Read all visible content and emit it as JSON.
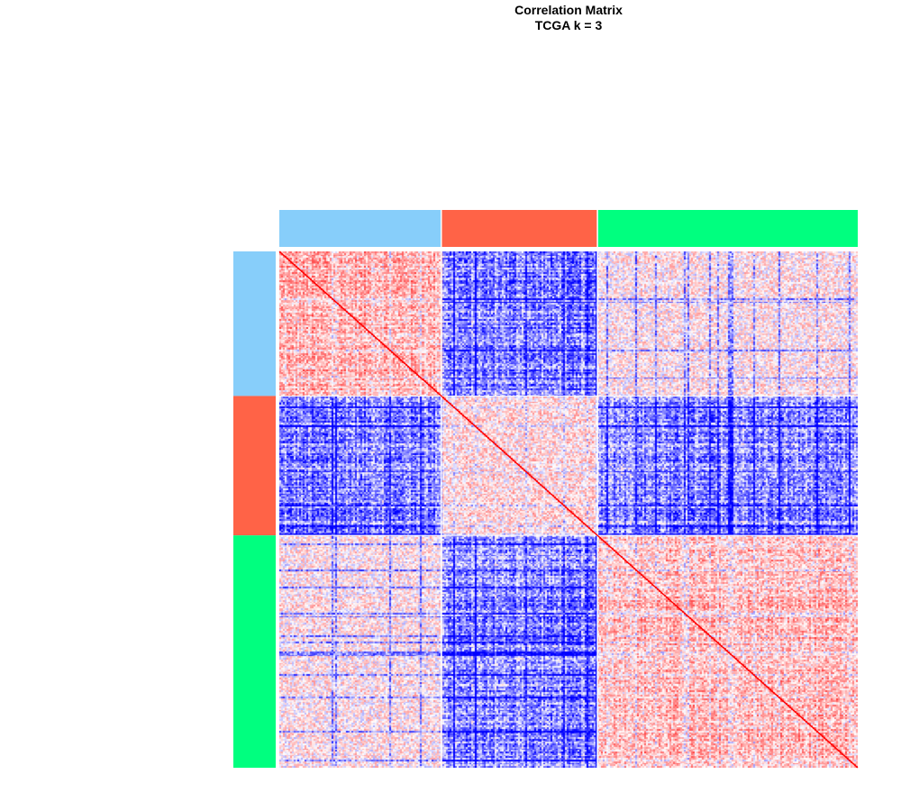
{
  "chart_data": {
    "type": "heatmap",
    "title": "Correlation Matrix",
    "subtitle": "TCGA k = 3",
    "xlabel": "",
    "ylabel": "",
    "legend": "none",
    "grid": false,
    "value_range": [
      -1,
      1
    ],
    "color_scale": {
      "negative": "#0000ff",
      "zero": "#ffffff",
      "positive": "#ff0000"
    },
    "clusters": [
      {
        "id": 1,
        "color": "#87cefa",
        "fraction": 0.28
      },
      {
        "id": 2,
        "color": "#ff6347",
        "fraction": 0.27
      },
      {
        "id": 3,
        "color": "#00ff7f",
        "fraction": 0.45
      }
    ],
    "block_mean_correlation": [
      [
        0.35,
        -0.45,
        0.1
      ],
      [
        -0.45,
        0.15,
        -0.4
      ],
      [
        0.1,
        -0.4,
        0.3
      ]
    ],
    "diagonal_value": 1.0
  }
}
